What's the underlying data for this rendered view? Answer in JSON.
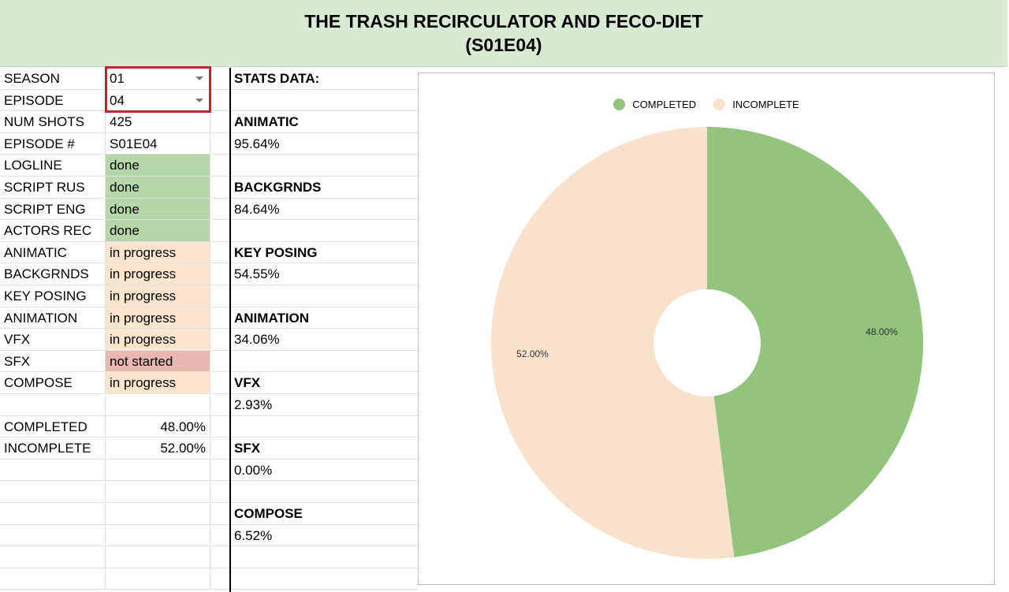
{
  "title": {
    "line1": "THE TRASH RECIRCULATOR AND FECO-DIET",
    "line2": "(S01E04)"
  },
  "info": [
    {
      "label": "SEASON",
      "value": "01",
      "status": "dropdown"
    },
    {
      "label": "EPISODE",
      "value": "04",
      "status": "dropdown"
    },
    {
      "label": "NUM SHOTS",
      "value": "425",
      "status": "plain"
    },
    {
      "label": "EPISODE #",
      "value": "S01E04",
      "status": "plain"
    },
    {
      "label": "LOGLINE",
      "value": "done",
      "status": "done"
    },
    {
      "label": "SCRIPT RUS",
      "value": "done",
      "status": "done"
    },
    {
      "label": "SCRIPT ENG",
      "value": "done",
      "status": "done"
    },
    {
      "label": "ACTORS REC",
      "value": "done",
      "status": "done"
    },
    {
      "label": "ANIMATIC",
      "value": "in progress",
      "status": "prog"
    },
    {
      "label": "BACKGRNDS",
      "value": "in progress",
      "status": "prog"
    },
    {
      "label": "KEY POSING",
      "value": "in progress",
      "status": "prog"
    },
    {
      "label": "ANIMATION",
      "value": "in progress",
      "status": "prog"
    },
    {
      "label": "VFX",
      "value": "in progress",
      "status": "prog"
    },
    {
      "label": "SFX",
      "value": "not started",
      "status": "nots"
    },
    {
      "label": "COMPOSE",
      "value": "in progress",
      "status": "prog"
    }
  ],
  "summary": [
    {
      "label": "COMPLETED",
      "value": "48.00%"
    },
    {
      "label": "INCOMPLETE",
      "value": "52.00%"
    }
  ],
  "stats": {
    "header": "STATS DATA:",
    "items": [
      {
        "label": "ANIMATIC",
        "value": "95.64%"
      },
      {
        "label": "BACKGRNDS",
        "value": "84.64%"
      },
      {
        "label": "KEY POSING",
        "value": "54.55%"
      },
      {
        "label": "ANIMATION",
        "value": "34.06%"
      },
      {
        "label": "VFX",
        "value": "2.93%"
      },
      {
        "label": "SFX",
        "value": "0.00%"
      },
      {
        "label": "COMPOSE",
        "value": "6.52%"
      }
    ]
  },
  "colors": {
    "completed": "#93c47d",
    "incomplete": "#f9e2cc",
    "done": "#b6d7a8",
    "in_progress": "#fce5cd",
    "not_started": "#e6b8af",
    "dropdown_highlight": "#c5232a"
  },
  "chart_data": {
    "type": "pie",
    "donut": true,
    "categories": [
      "COMPLETED",
      "INCOMPLETE"
    ],
    "values": [
      48.0,
      52.0
    ],
    "labels": [
      "48.00%",
      "52.00%"
    ],
    "legend": "top"
  }
}
